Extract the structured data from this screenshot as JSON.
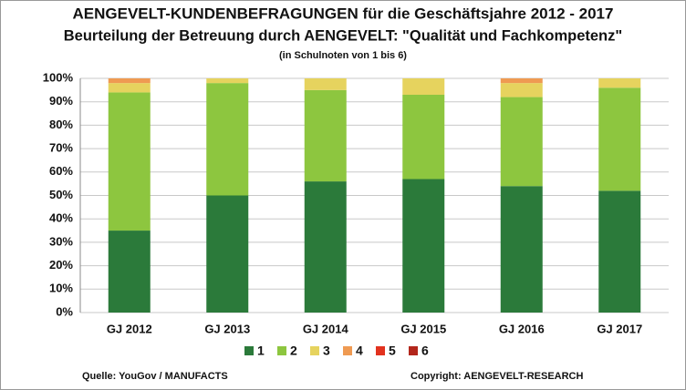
{
  "chart_data": {
    "type": "stacked_bar",
    "title": "AENGEVELT-KUNDENBEFRAGUNGEN für die Geschäftsjahre 2012 - 2017",
    "subtitle": "Beurteilung der Betreuung durch AENGEVELT: \"Qualität und Fachkompetenz\"",
    "note": "(in Schulnoten von 1 bis 6)",
    "categories": [
      "GJ 2012",
      "GJ 2013",
      "GJ 2014",
      "GJ 2015",
      "GJ 2016",
      "GJ 2017"
    ],
    "series": [
      {
        "name": "1",
        "color": "#2b7a3a",
        "values": [
          35,
          50,
          56,
          57,
          54,
          52
        ]
      },
      {
        "name": "2",
        "color": "#8dc63f",
        "values": [
          59,
          48,
          39,
          36,
          38,
          44
        ]
      },
      {
        "name": "3",
        "color": "#e6d35e",
        "values": [
          4,
          2,
          5,
          7,
          6,
          4
        ]
      },
      {
        "name": "4",
        "color": "#ef9a52",
        "values": [
          2,
          0,
          0,
          0,
          2,
          0
        ]
      },
      {
        "name": "5",
        "color": "#e2321f",
        "values": [
          0,
          0,
          0,
          0,
          0,
          0
        ]
      },
      {
        "name": "6",
        "color": "#b3261b",
        "values": [
          0,
          0,
          0,
          0,
          0,
          0
        ]
      }
    ],
    "ylim": [
      0,
      100
    ],
    "yticks": [
      {
        "value": 0,
        "label": "0%"
      },
      {
        "value": 10,
        "label": "10%"
      },
      {
        "value": 20,
        "label": "20%"
      },
      {
        "value": 30,
        "label": "30%"
      },
      {
        "value": 40,
        "label": "40%"
      },
      {
        "value": 50,
        "label": "50%"
      },
      {
        "value": 60,
        "label": "60%"
      },
      {
        "value": 70,
        "label": "70%"
      },
      {
        "value": 80,
        "label": "80%"
      },
      {
        "value": 90,
        "label": "90%"
      },
      {
        "value": 100,
        "label": "100%"
      }
    ],
    "grid": true,
    "legend": "bottom",
    "source": "Quelle: YouGov / MANUFACTS",
    "copyright": "Copyright: AENGEVELT-RESEARCH"
  }
}
